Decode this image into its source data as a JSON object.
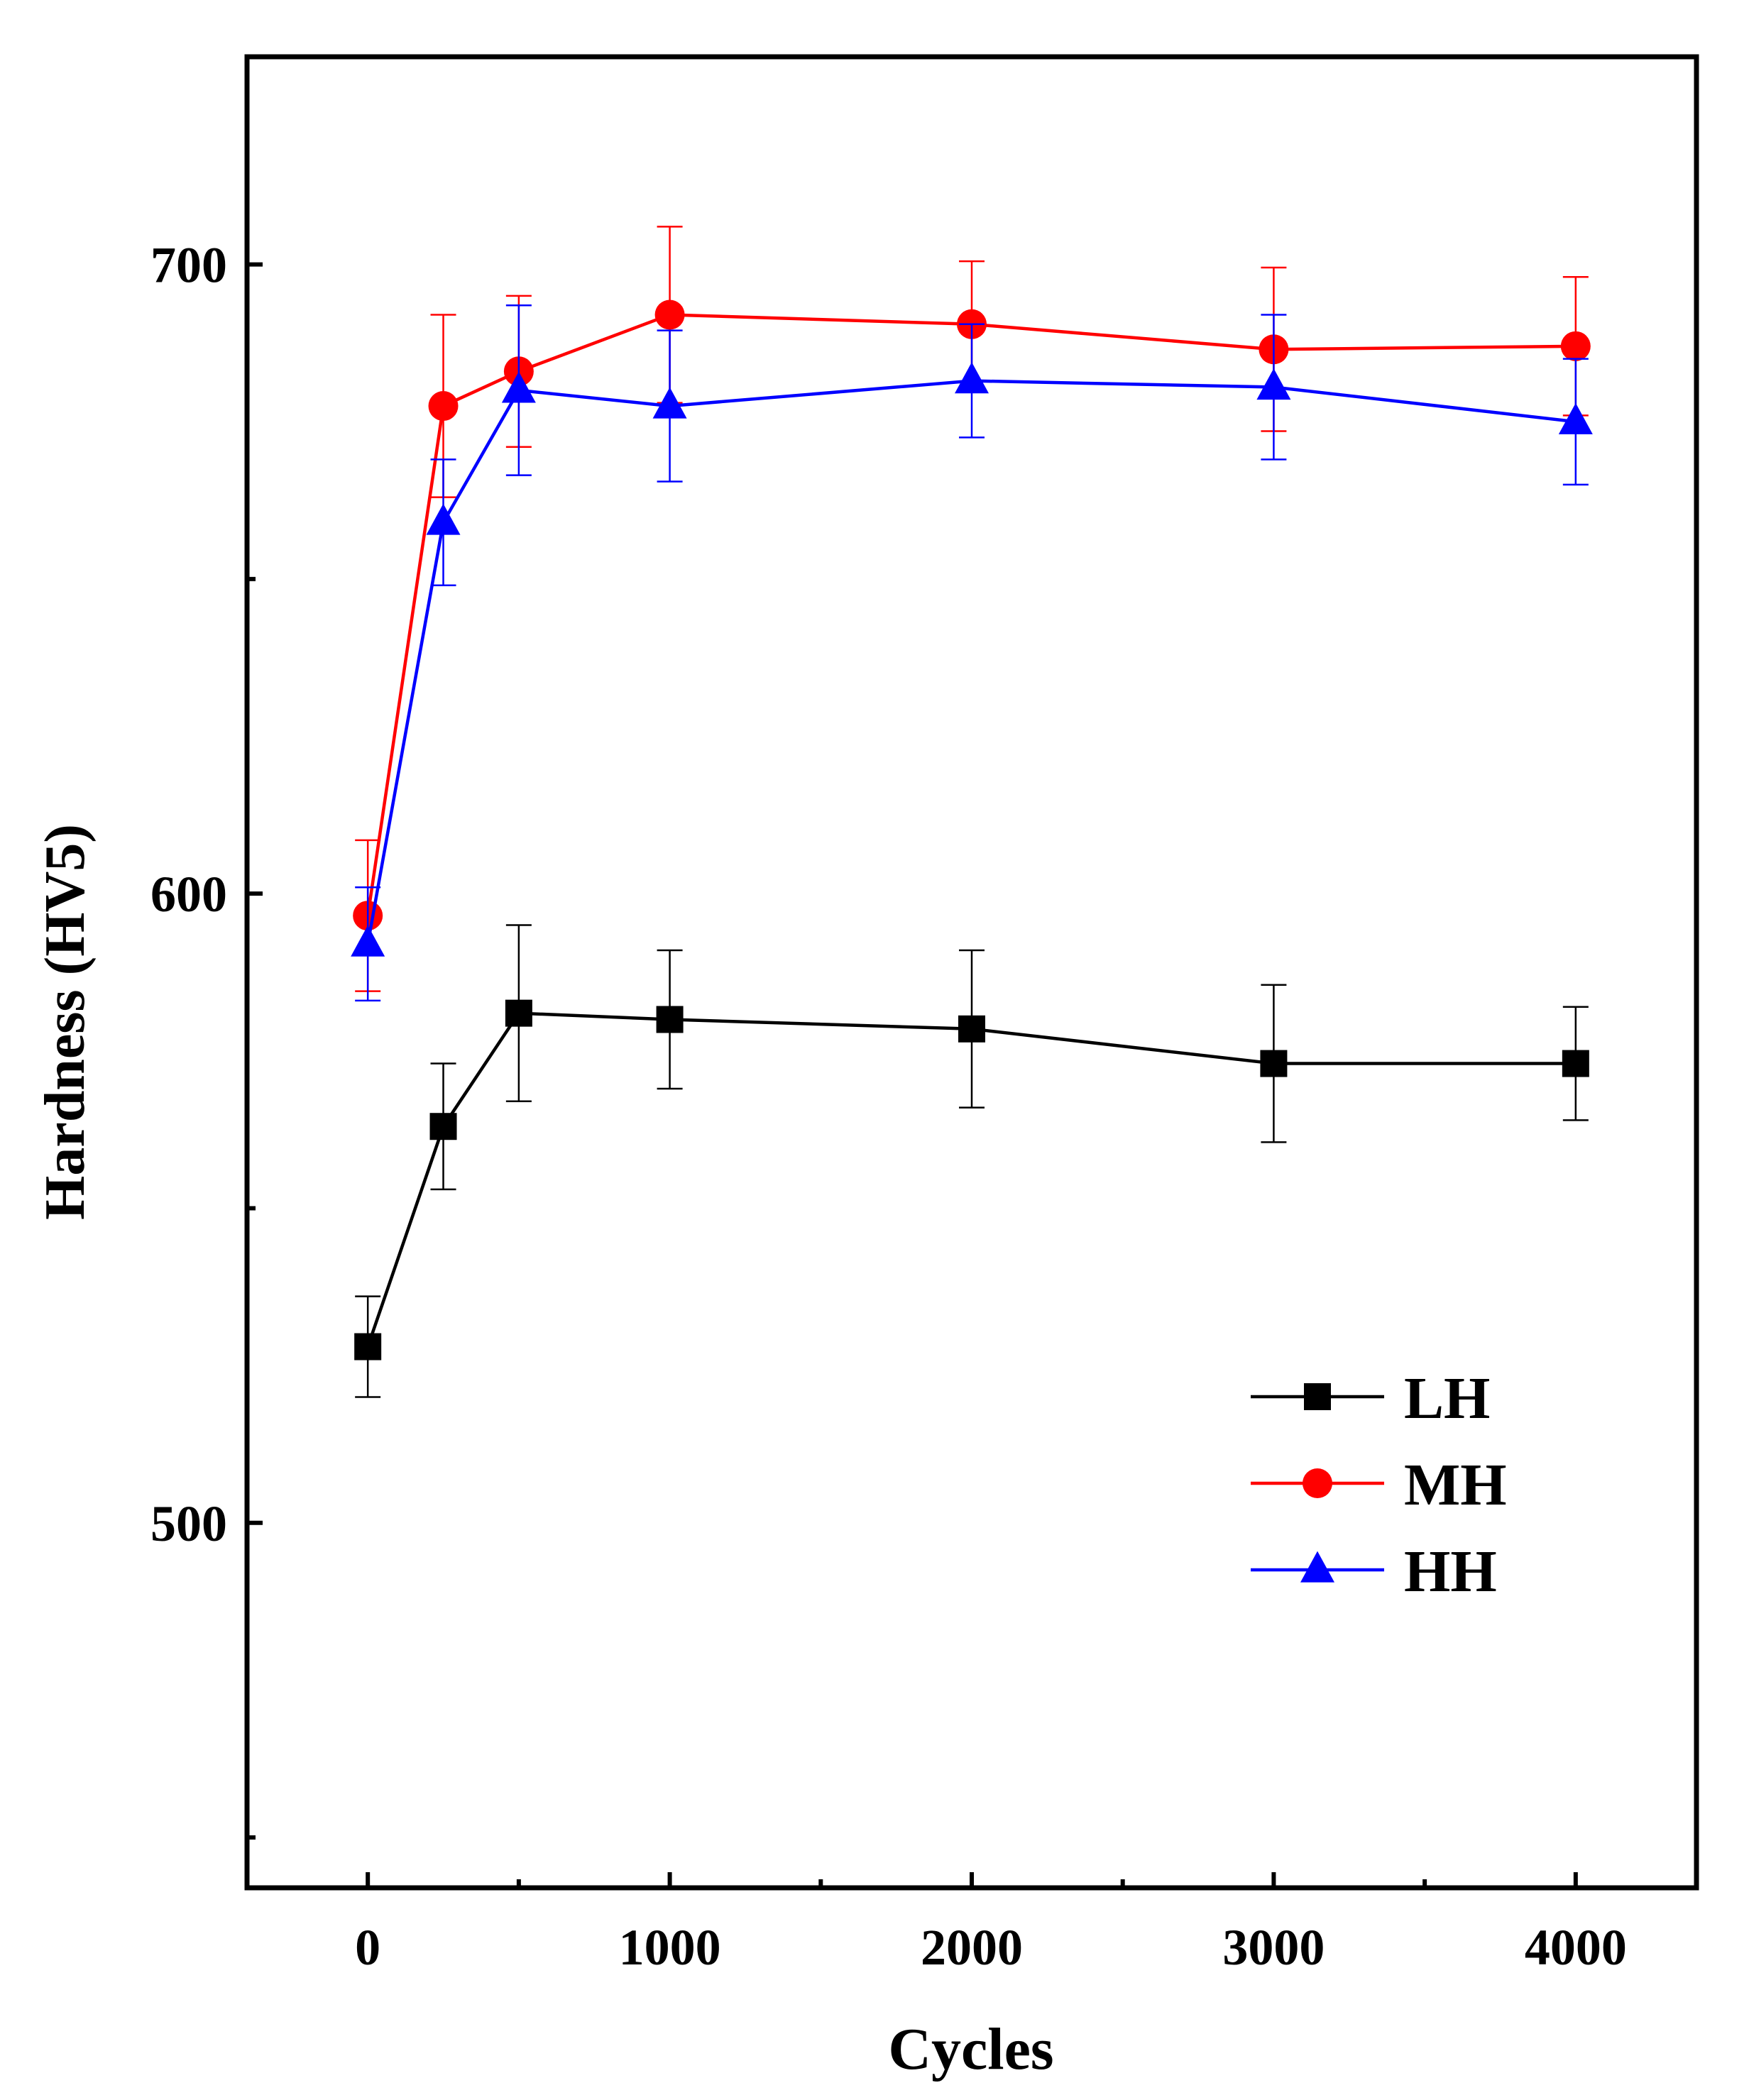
{
  "chart_data": {
    "type": "line",
    "title": "",
    "xlabel": "Cycles",
    "ylabel": "Hardness (HV5)",
    "xlim": [
      -400,
      4400
    ],
    "ylim": [
      442,
      733
    ],
    "x_ticks": [
      0,
      1000,
      2000,
      3000,
      4000
    ],
    "x_minor_ticks": [
      500,
      1500,
      2500,
      3500
    ],
    "y_ticks": [
      500,
      600,
      700
    ],
    "y_minor_ticks": [
      450,
      550,
      650
    ],
    "legend_position": "bottom-right",
    "series": [
      {
        "name": "LH",
        "color": "#000000",
        "marker": "square",
        "x": [
          0,
          250,
          500,
          1000,
          2000,
          3000,
          4000
        ],
        "y": [
          528,
          563,
          581,
          580,
          578.5,
          573,
          573
        ],
        "err": [
          8,
          10,
          14,
          11,
          12.5,
          12.5,
          9
        ]
      },
      {
        "name": "MH",
        "color": "#ff0000",
        "marker": "circle",
        "x": [
          0,
          250,
          500,
          1000,
          2000,
          3000,
          4000
        ],
        "y": [
          596.5,
          677.5,
          683,
          692,
          690.5,
          686.5,
          687
        ],
        "err": [
          12,
          14.5,
          12,
          14,
          10,
          13,
          11
        ]
      },
      {
        "name": "HH",
        "color": "#0000ff",
        "marker": "triangle",
        "x": [
          0,
          250,
          500,
          1000,
          2000,
          3000,
          4000
        ],
        "y": [
          592,
          659,
          680,
          677.5,
          681.5,
          680.5,
          675
        ],
        "err": [
          9,
          10,
          13.5,
          12,
          9,
          11.5,
          10
        ]
      }
    ]
  }
}
